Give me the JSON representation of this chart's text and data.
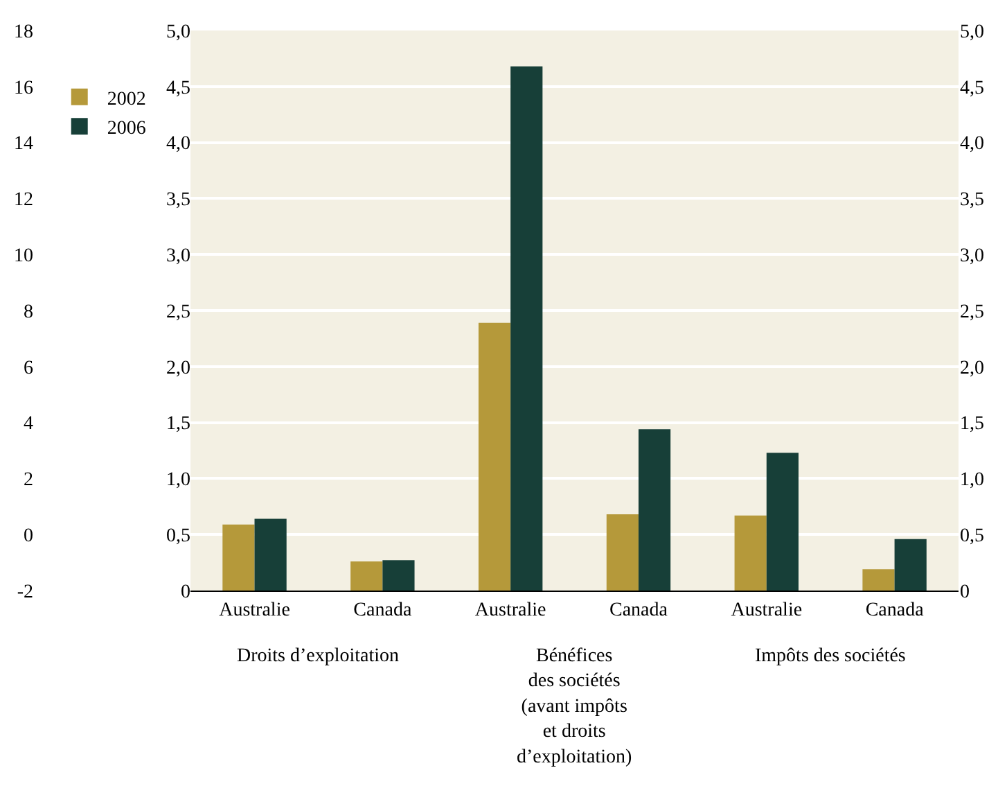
{
  "chart_data": {
    "type": "bar",
    "categories": [
      "Australie",
      "Canada",
      "Australie",
      "Canada",
      "Australie",
      "Canada"
    ],
    "series": [
      {
        "name": "2002",
        "color": "#b5993a",
        "values": [
          0.59,
          0.26,
          2.39,
          0.68,
          0.67,
          0.19
        ]
      },
      {
        "name": "2006",
        "color": "#173f38",
        "values": [
          0.64,
          0.27,
          4.68,
          1.44,
          1.23,
          0.46
        ]
      }
    ],
    "annotations": [
      "Droits d’exploitation",
      "Bénéfices\ndes sociétés\n(avant impôts\net droits\nd’exploitation)",
      "Impôts des sociétés"
    ],
    "ylim": [
      0,
      5
    ],
    "yticks": [
      0,
      {
        "value": 0.5,
        "label": "0,5"
      },
      {
        "value": 1,
        "label": "1,0"
      },
      {
        "value": 1.5,
        "label": "1,5"
      },
      {
        "value": 2,
        "label": "2,0"
      },
      {
        "value": 2.5,
        "label": "2,5"
      },
      {
        "value": 3,
        "label": "3,0"
      },
      {
        "value": 3.5,
        "label": "3,5"
      },
      {
        "value": 4,
        "label": "4,0"
      },
      {
        "value": 4.5,
        "label": "4,5"
      },
      {
        "value": 5,
        "label": "5,0"
      }
    ],
    "y2lim": [
      0,
      5
    ],
    "y2ticks": [
      0,
      {
        "value": 0.5,
        "label": "0,5"
      },
      {
        "value": 1,
        "label": "1,0"
      },
      {
        "value": 1.5,
        "label": "1,5"
      },
      {
        "value": 2,
        "label": "2,0"
      },
      {
        "value": 2.5,
        "label": "2,5"
      },
      {
        "value": 3,
        "label": "3,0"
      },
      {
        "value": 3.5,
        "label": "3,5"
      },
      {
        "value": 4,
        "label": "4,0"
      },
      {
        "value": 4.5,
        "label": "4,5"
      },
      {
        "value": 5,
        "label": "5,0"
      }
    ],
    "y3lim": [
      -2,
      18
    ],
    "y3ticks": [
      -2,
      0,
      2,
      4,
      6,
      8,
      10,
      12,
      14,
      16,
      18
    ],
    "grid": "y",
    "legend": "top left"
  }
}
